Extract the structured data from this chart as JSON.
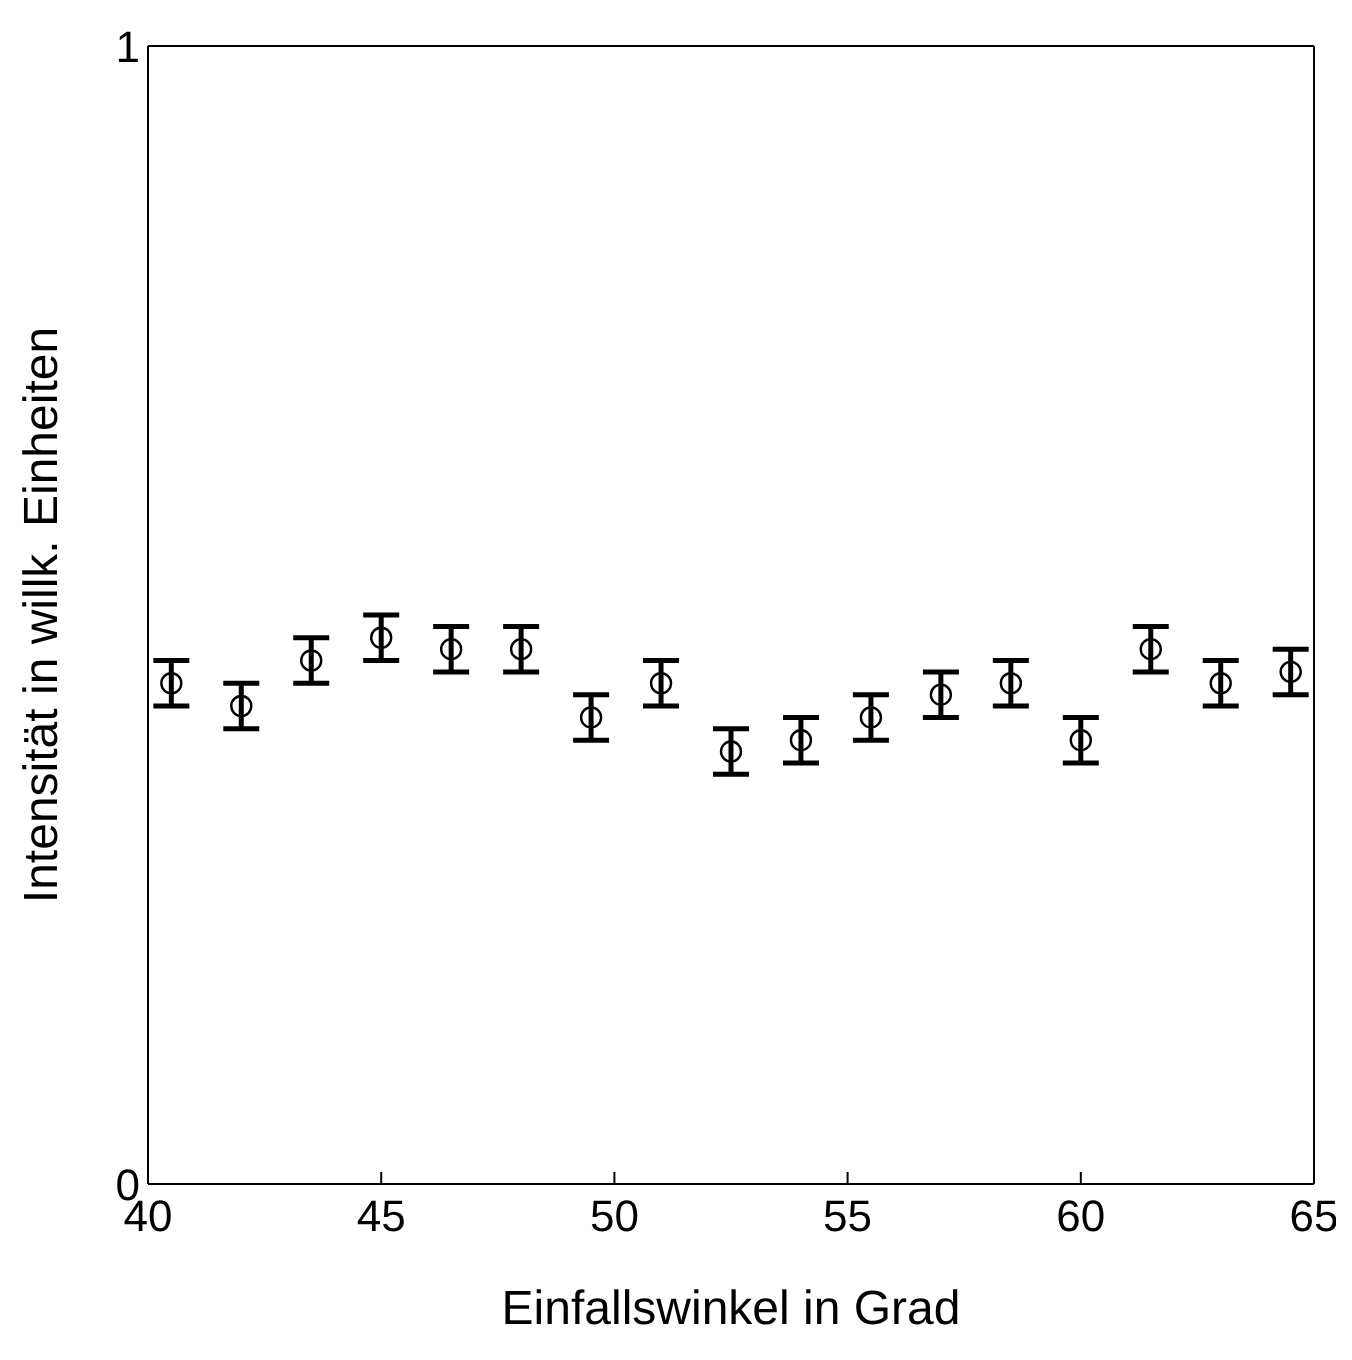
{
  "chart_data": {
    "type": "scatter",
    "xlabel": "Einfallswinkel in Grad",
    "ylabel": "Intensität in willk. Einheiten",
    "x": [
      40.5,
      42,
      43.5,
      45,
      46.5,
      48,
      49.5,
      51,
      52.5,
      54,
      55.5,
      57,
      58.5,
      60,
      61.5,
      63,
      64.5
    ],
    "series": [
      {
        "color": "#000000",
        "values": [
          0.44,
          0.42,
          0.46,
          0.48,
          0.47,
          0.47,
          0.41,
          0.44,
          0.38,
          0.39,
          0.41,
          0.43,
          0.44,
          0.39,
          0.47,
          0.44,
          0.45
        ],
        "errors": [
          0.02,
          0.02,
          0.02,
          0.02,
          0.02,
          0.02,
          0.02,
          0.02,
          0.02,
          0.02,
          0.02,
          0.02,
          0.02,
          0.02,
          0.02,
          0.02,
          0.02
        ]
      }
    ],
    "xlim": [
      40,
      65
    ],
    "xticks": [
      40,
      45,
      50,
      55,
      60,
      65
    ],
    "ylim": [
      0,
      1
    ],
    "yticks": [
      0,
      1
    ],
    "marker": "circle"
  }
}
